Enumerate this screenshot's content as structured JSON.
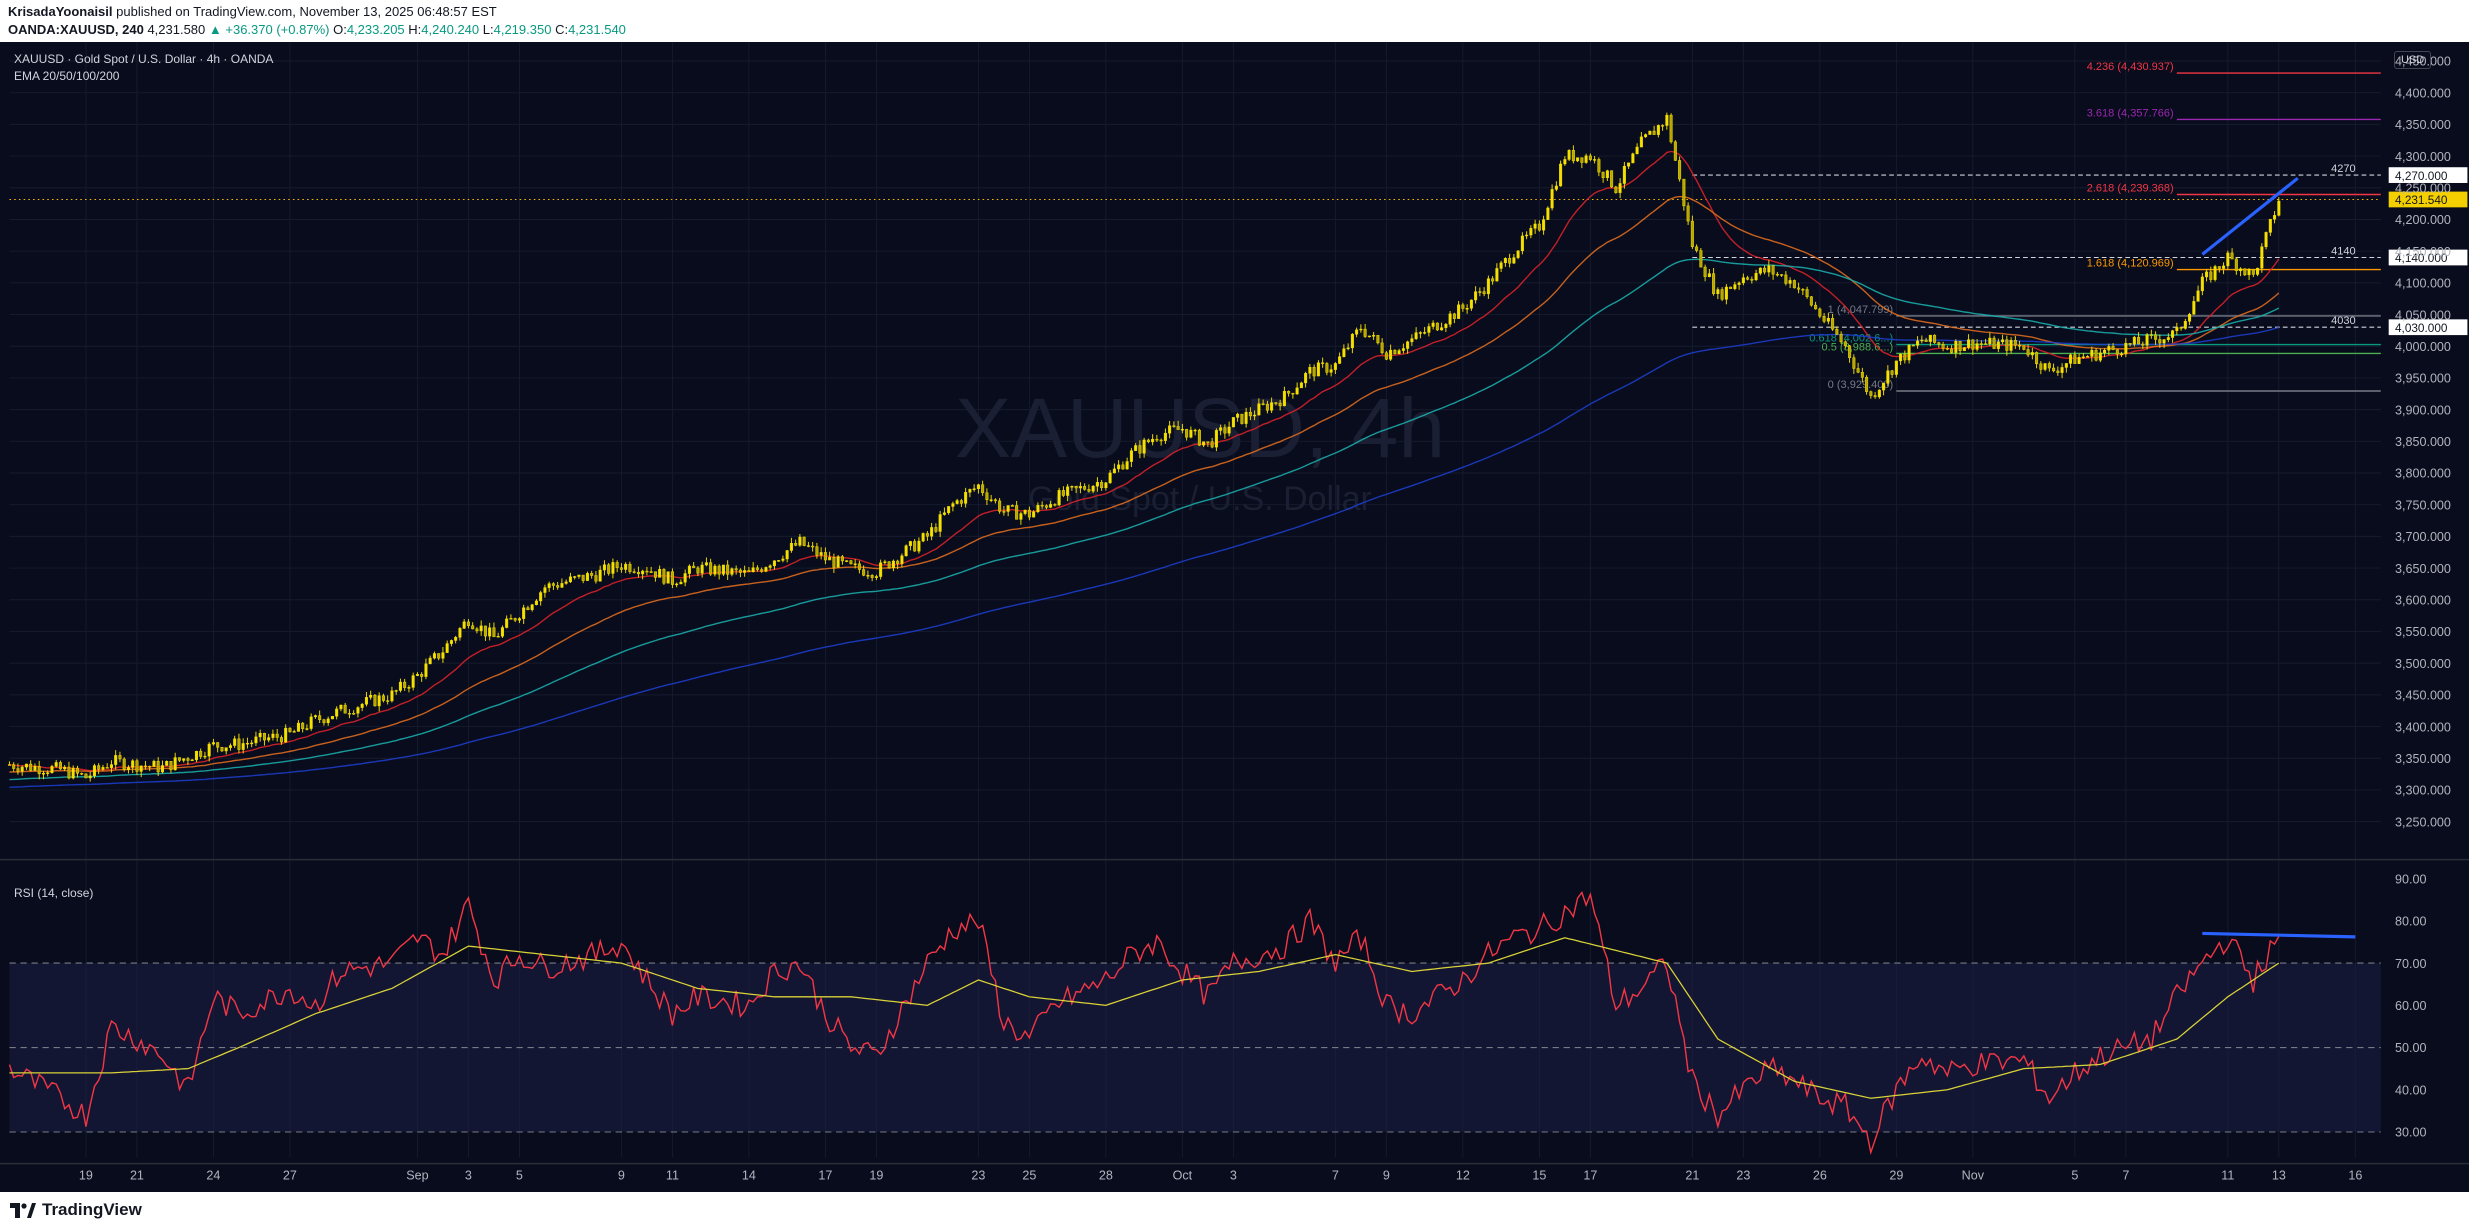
{
  "header": {
    "author": "KrisadaYoonaisil",
    "published_text": "published on TradingView.com, November 13, 2025 06:48:57 EST",
    "symbol": "OANDA:XAUUSD, 240",
    "last": "4,231.580",
    "change": "▲ +36.370 (+0.87%)",
    "ohlc": [
      {
        "label": "O:",
        "value": "4,233.205"
      },
      {
        "label": "H:",
        "value": "4,240.240"
      },
      {
        "label": "L:",
        "value": "4,219.350"
      },
      {
        "label": "C:",
        "value": "4,231.540"
      }
    ]
  },
  "legend": {
    "title": "XAUUSD · Gold Spot / U.S. Dollar · 4h · OANDA",
    "ema": "EMA 20/50/100/200",
    "rsi": "RSI (14, close)",
    "currency": "USD"
  },
  "watermark": {
    "symbol": "XAUUSD, 4h",
    "name": "Gold Spot / U.S. Dollar"
  },
  "footer": {
    "brand": "TradingView"
  },
  "colors": {
    "background": "#080c1c",
    "candle": "#f5e000",
    "ema20": "#e0232a",
    "ema50": "#e8701f",
    "ema100": "#1bb3b0",
    "ema200": "#1d3fd1",
    "rsi": "#f23645",
    "rsi_ma": "#d9d238",
    "trendline": "#2962ff",
    "axis_text": "#b2b5be",
    "grid": "#161b2e"
  },
  "chart_data": [
    {
      "type": "candlestick",
      "title": "XAUUSD · Gold Spot / U.S. Dollar · 4h · OANDA",
      "ylim": [
        3200,
        4480
      ],
      "y_ticks": [
        3250,
        3300,
        3350,
        3400,
        3450,
        3500,
        3550,
        3600,
        3650,
        3700,
        3750,
        3800,
        3850,
        3900,
        3950,
        4000,
        4050,
        4100,
        4150,
        4200,
        4250,
        4300,
        4350,
        4400,
        4450
      ],
      "x_ticks": [
        "19",
        "21",
        "24",
        "27",
        "Sep",
        "3",
        "5",
        "9",
        "11",
        "14",
        "17",
        "19",
        "23",
        "25",
        "28",
        "Oct",
        "3",
        "7",
        "9",
        "12",
        "15",
        "17",
        "21",
        "23",
        "26",
        "29",
        "Nov",
        "5",
        "7",
        "11",
        "13",
        "16"
      ],
      "x_tick_dates": [
        "2025-08-19",
        "2025-08-21",
        "2025-08-24",
        "2025-08-27",
        "2025-09-01",
        "2025-09-03",
        "2025-09-05",
        "2025-09-09",
        "2025-09-11",
        "2025-09-14",
        "2025-09-17",
        "2025-09-19",
        "2025-09-23",
        "2025-09-25",
        "2025-09-28",
        "2025-10-01",
        "2025-10-03",
        "2025-10-07",
        "2025-10-09",
        "2025-10-12",
        "2025-10-15",
        "2025-10-17",
        "2025-10-21",
        "2025-10-23",
        "2025-10-26",
        "2025-10-29",
        "2025-11-01",
        "2025-11-05",
        "2025-11-07",
        "2025-11-11",
        "2025-11-13",
        "2025-11-16"
      ],
      "x_range": [
        "2025-08-16",
        "2025-11-17"
      ],
      "price_path": [
        [
          "2025-08-16",
          3340
        ],
        [
          "2025-08-18",
          3332
        ],
        [
          "2025-08-19",
          3320
        ],
        [
          "2025-08-20",
          3345
        ],
        [
          "2025-08-21",
          3340
        ],
        [
          "2025-08-22",
          3335
        ],
        [
          "2025-08-24",
          3370
        ],
        [
          "2025-08-25",
          3372
        ],
        [
          "2025-08-27",
          3388
        ],
        [
          "2025-08-28",
          3410
        ],
        [
          "2025-08-29",
          3425
        ],
        [
          "2025-08-31",
          3450
        ],
        [
          "2025-09-01",
          3480
        ],
        [
          "2025-09-02",
          3520
        ],
        [
          "2025-09-03",
          3570
        ],
        [
          "2025-09-04",
          3540
        ],
        [
          "2025-09-05",
          3580
        ],
        [
          "2025-09-06",
          3620
        ],
        [
          "2025-09-08",
          3640
        ],
        [
          "2025-09-09",
          3655
        ],
        [
          "2025-09-10",
          3650
        ],
        [
          "2025-09-11",
          3630
        ],
        [
          "2025-09-12",
          3650
        ],
        [
          "2025-09-14",
          3640
        ],
        [
          "2025-09-15",
          3665
        ],
        [
          "2025-09-16",
          3690
        ],
        [
          "2025-09-17",
          3665
        ],
        [
          "2025-09-18",
          3650
        ],
        [
          "2025-09-19",
          3645
        ],
        [
          "2025-09-21",
          3700
        ],
        [
          "2025-09-22",
          3750
        ],
        [
          "2025-09-23",
          3780
        ],
        [
          "2025-09-24",
          3740
        ],
        [
          "2025-09-25",
          3735
        ],
        [
          "2025-09-26",
          3760
        ],
        [
          "2025-09-28",
          3790
        ],
        [
          "2025-09-29",
          3830
        ],
        [
          "2025-09-30",
          3860
        ],
        [
          "2025-10-01",
          3870
        ],
        [
          "2025-10-02",
          3845
        ],
        [
          "2025-10-03",
          3880
        ],
        [
          "2025-10-05",
          3920
        ],
        [
          "2025-10-06",
          3960
        ],
        [
          "2025-10-07",
          3970
        ],
        [
          "2025-10-08",
          4030
        ],
        [
          "2025-10-09",
          3990
        ],
        [
          "2025-10-10",
          4010
        ],
        [
          "2025-10-12",
          4060
        ],
        [
          "2025-10-13",
          4100
        ],
        [
          "2025-10-14",
          4150
        ],
        [
          "2025-10-15",
          4190
        ],
        [
          "2025-10-16",
          4300
        ],
        [
          "2025-10-17",
          4300
        ],
        [
          "2025-10-18",
          4250
        ],
        [
          "2025-10-19",
          4320
        ],
        [
          "2025-10-20",
          4360
        ],
        [
          "2025-10-21",
          4160
        ],
        [
          "2025-10-22",
          4080
        ],
        [
          "2025-10-23",
          4110
        ],
        [
          "2025-10-24",
          4120
        ],
        [
          "2025-10-25",
          4100
        ],
        [
          "2025-10-26",
          4050
        ],
        [
          "2025-10-27",
          4000
        ],
        [
          "2025-10-28",
          3920
        ],
        [
          "2025-10-29",
          3975
        ],
        [
          "2025-10-30",
          4010
        ],
        [
          "2025-10-31",
          4000
        ],
        [
          "2025-11-01",
          4005
        ],
        [
          "2025-11-03",
          4000
        ],
        [
          "2025-11-04",
          3960
        ],
        [
          "2025-11-05",
          3980
        ],
        [
          "2025-11-06",
          3990
        ],
        [
          "2025-11-07",
          4000
        ],
        [
          "2025-11-09",
          4020
        ],
        [
          "2025-11-10",
          4100
        ],
        [
          "2025-11-11",
          4140
        ],
        [
          "2025-11-12",
          4110
        ],
        [
          "2025-11-13",
          4231.54
        ]
      ],
      "ema_periods": [
        20,
        50,
        100,
        200
      ],
      "price_levels": [
        {
          "label": "4.236 (4,430.937)",
          "value": 4430.937,
          "color": "#f23645"
        },
        {
          "label": "3.618 (4,357.766)",
          "value": 4357.766,
          "color": "#9c27b0"
        },
        {
          "label": "2.618 (4,239.368)",
          "value": 4239.368,
          "color": "#f23645"
        },
        {
          "label": "1.618 (4,120.969)",
          "value": 4120.969,
          "color": "#ff9800"
        },
        {
          "label": "1 (4,047.799)",
          "value": 4047.799,
          "color": "#787b86"
        },
        {
          "label": "0.618 (4,002.6...)",
          "value": 4002.6,
          "color": "#089981"
        },
        {
          "label": "0.5 (3,988.6...)",
          "value": 3988.6,
          "color": "#4caf50"
        },
        {
          "label": "0 (3,929.400)",
          "value": 3929.4,
          "color": "#787b86"
        }
      ],
      "horizontal_lines": [
        {
          "label": "4270",
          "value": 4270.0,
          "price_tag": "4,270.000"
        },
        {
          "label": "4140",
          "value": 4140.0,
          "price_tag": "4,140.000"
        },
        {
          "label": "4030",
          "value": 4030.0,
          "price_tag": "4,030.000"
        }
      ],
      "last_price": {
        "value": 4231.54,
        "label": "4,231.540"
      },
      "trendline": {
        "from": [
          "2025-11-10",
          4145
        ],
        "to": [
          "2025-11-13",
          4265
        ]
      }
    },
    {
      "type": "line",
      "title": "RSI (14, close)",
      "ylim": [
        24,
        93
      ],
      "y_ticks": [
        30,
        40,
        50,
        60,
        70,
        80,
        90
      ],
      "y_tick_labels": [
        "30.00",
        "40.00",
        "50.00",
        "60.00",
        "70.00",
        "80.00",
        "90.00"
      ],
      "bands": [
        30,
        50,
        70
      ],
      "series": [
        {
          "values_path": [
            [
              "2025-08-16",
              45
            ],
            [
              "2025-08-18",
              38
            ],
            [
              "2025-08-19",
              34
            ],
            [
              "2025-08-20",
              55
            ],
            [
              "2025-08-21",
              52
            ],
            [
              "2025-08-22",
              48
            ],
            [
              "2025-08-23",
              40
            ],
            [
              "2025-08-24",
              62
            ],
            [
              "2025-08-25",
              58
            ],
            [
              "2025-08-27",
              64
            ],
            [
              "2025-08-28",
              60
            ],
            [
              "2025-08-29",
              68
            ],
            [
              "2025-08-31",
              70
            ],
            [
              "2025-09-01",
              76
            ],
            [
              "2025-09-02",
              72
            ],
            [
              "2025-09-03",
              84
            ],
            [
              "2025-09-04",
              66
            ],
            [
              "2025-09-05",
              72
            ],
            [
              "2025-09-06",
              69
            ],
            [
              "2025-09-08",
              72
            ],
            [
              "2025-09-09",
              75
            ],
            [
              "2025-09-10",
              66
            ],
            [
              "2025-09-11",
              58
            ],
            [
              "2025-09-12",
              62
            ],
            [
              "2025-09-14",
              60
            ],
            [
              "2025-09-15",
              68
            ],
            [
              "2025-09-16",
              70
            ],
            [
              "2025-09-17",
              58
            ],
            [
              "2025-09-18",
              50
            ],
            [
              "2025-09-19",
              48
            ],
            [
              "2025-09-21",
              70
            ],
            [
              "2025-09-22",
              78
            ],
            [
              "2025-09-23",
              80
            ],
            [
              "2025-09-24",
              56
            ],
            [
              "2025-09-25",
              52
            ],
            [
              "2025-09-26",
              60
            ],
            [
              "2025-09-28",
              66
            ],
            [
              "2025-09-29",
              72
            ],
            [
              "2025-09-30",
              75
            ],
            [
              "2025-10-01",
              68
            ],
            [
              "2025-10-02",
              62
            ],
            [
              "2025-10-03",
              70
            ],
            [
              "2025-10-05",
              74
            ],
            [
              "2025-10-06",
              80
            ],
            [
              "2025-10-07",
              70
            ],
            [
              "2025-10-08",
              76
            ],
            [
              "2025-10-09",
              60
            ],
            [
              "2025-10-10",
              58
            ],
            [
              "2025-10-12",
              66
            ],
            [
              "2025-10-13",
              72
            ],
            [
              "2025-10-14",
              76
            ],
            [
              "2025-10-15",
              78
            ],
            [
              "2025-10-16",
              82
            ],
            [
              "2025-10-17",
              86
            ],
            [
              "2025-10-18",
              60
            ],
            [
              "2025-10-19",
              64
            ],
            [
              "2025-10-20",
              70
            ],
            [
              "2025-10-21",
              42
            ],
            [
              "2025-10-22",
              34
            ],
            [
              "2025-10-23",
              40
            ],
            [
              "2025-10-24",
              45
            ],
            [
              "2025-10-25",
              42
            ],
            [
              "2025-10-26",
              38
            ],
            [
              "2025-10-27",
              36
            ],
            [
              "2025-10-28",
              28
            ],
            [
              "2025-10-29",
              40
            ],
            [
              "2025-10-30",
              48
            ],
            [
              "2025-10-31",
              44
            ],
            [
              "2025-11-01",
              46
            ],
            [
              "2025-11-03",
              47
            ],
            [
              "2025-11-04",
              38
            ],
            [
              "2025-11-05",
              44
            ],
            [
              "2025-11-06",
              48
            ],
            [
              "2025-11-07",
              50
            ],
            [
              "2025-11-08",
              52
            ],
            [
              "2025-11-09",
              62
            ],
            [
              "2025-11-10",
              70
            ],
            [
              "2025-11-11",
              76
            ],
            [
              "2025-11-12",
              66
            ],
            [
              "2025-11-13",
              76
            ]
          ]
        },
        {
          "values_path": [
            [
              "2025-08-16",
              44
            ],
            [
              "2025-08-20",
              44
            ],
            [
              "2025-08-23",
              45
            ],
            [
              "2025-08-25",
              50
            ],
            [
              "2025-08-28",
              58
            ],
            [
              "2025-08-31",
              64
            ],
            [
              "2025-09-03",
              74
            ],
            [
              "2025-09-06",
              72
            ],
            [
              "2025-09-09",
              70
            ],
            [
              "2025-09-12",
              64
            ],
            [
              "2025-09-15",
              62
            ],
            [
              "2025-09-18",
              62
            ],
            [
              "2025-09-21",
              60
            ],
            [
              "2025-09-23",
              66
            ],
            [
              "2025-09-25",
              62
            ],
            [
              "2025-09-28",
              60
            ],
            [
              "2025-10-01",
              66
            ],
            [
              "2025-10-04",
              68
            ],
            [
              "2025-10-07",
              72
            ],
            [
              "2025-10-10",
              68
            ],
            [
              "2025-10-13",
              70
            ],
            [
              "2025-10-16",
              76
            ],
            [
              "2025-10-18",
              73
            ],
            [
              "2025-10-20",
              70
            ],
            [
              "2025-10-22",
              52
            ],
            [
              "2025-10-25",
              42
            ],
            [
              "2025-10-28",
              38
            ],
            [
              "2025-10-31",
              40
            ],
            [
              "2025-11-03",
              45
            ],
            [
              "2025-11-06",
              46
            ],
            [
              "2025-11-09",
              52
            ],
            [
              "2025-11-11",
              62
            ],
            [
              "2025-11-13",
              70
            ]
          ]
        }
      ],
      "trendline": {
        "from": [
          "2025-11-10",
          77
        ],
        "to": [
          "2025-11-16",
          76.2
        ]
      }
    }
  ]
}
